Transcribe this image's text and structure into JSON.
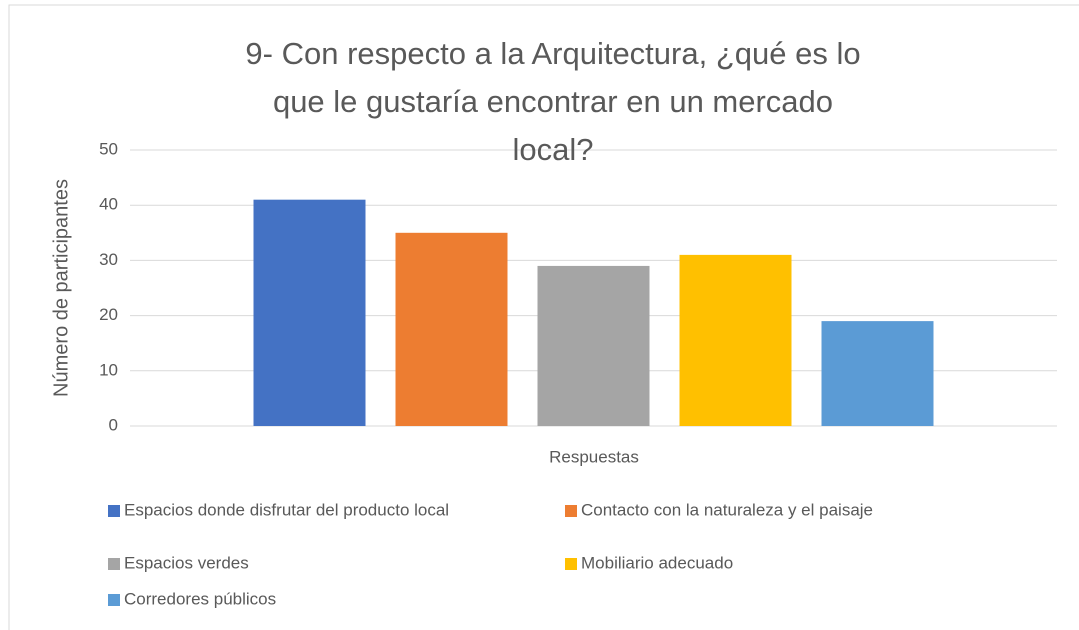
{
  "chart_data": {
    "type": "bar",
    "title": "9- Con respecto a la Arquitectura, ¿qué es lo que le gustaría encontrar en un mercado local?",
    "x_label": "Respuestas",
    "y_label": "Número de participantes",
    "categories": [
      "Respuestas"
    ],
    "series": [
      {
        "name": "Espacios donde disfrutar del producto local",
        "color": "#4472c4",
        "values": [
          41
        ]
      },
      {
        "name": "Contacto con la naturaleza y el paisaje",
        "color": "#ed7d31",
        "values": [
          35
        ]
      },
      {
        "name": "Espacios verdes",
        "color": "#a5a5a5",
        "values": [
          29
        ]
      },
      {
        "name": "Mobiliario adecuado",
        "color": "#ffc000",
        "values": [
          31
        ]
      },
      {
        "name": "Corredores públicos",
        "color": "#5b9bd5",
        "values": [
          19
        ]
      }
    ],
    "ylim": [
      0,
      50
    ],
    "yticks": [
      0,
      10,
      20,
      30,
      40,
      50
    ],
    "grid": true,
    "legend": "bottom"
  }
}
